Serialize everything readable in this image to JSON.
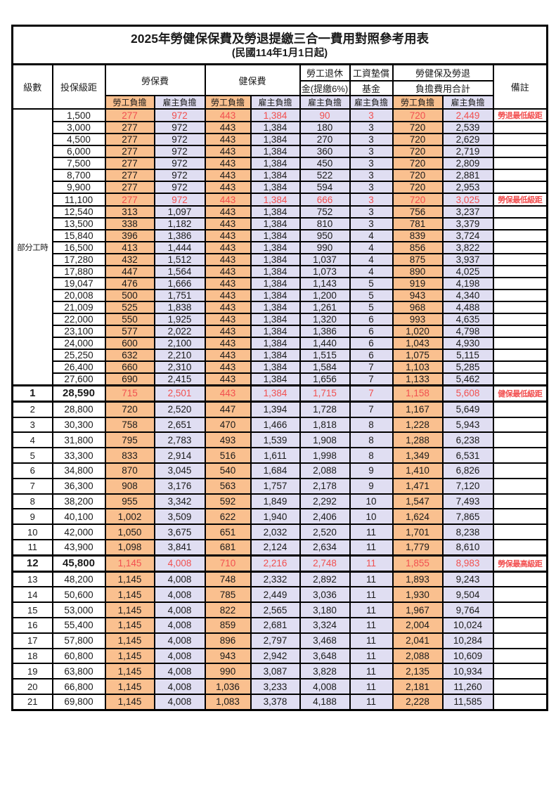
{
  "title": "2025年勞健保保費及勞退提繳三合一費用對照參考用表",
  "subtitle": "(民國114年1月1日起)",
  "header": {
    "level": "級數",
    "bracket": "投保級距",
    "labor_insurance": "勞保費",
    "health_insurance": "健保費",
    "pension_line1": "勞工退休",
    "pension_line2": "金(提繳6%)",
    "wage_fund_line1": "工資墊償",
    "wage_fund_line2": "基金",
    "total_line1": "勞健保及勞退",
    "total_line2": "負擔費用合計",
    "remark": "備註",
    "employee_share": "勞工負擔",
    "employer_share": "雇主負擔"
  },
  "merged_level_label": "部分工時",
  "colors": {
    "employee_col_bg": "#FAC08F",
    "employer_col_bg": "#E0DEF2",
    "highlight_text": "#F25050",
    "border": "#000000"
  },
  "rows": [
    {
      "level": "",
      "wage": "1,500",
      "v": [
        "277",
        "972",
        "443",
        "1,384",
        "90",
        "3",
        "720",
        "2,449"
      ],
      "remark": "勞退最低級距",
      "red": true
    },
    {
      "level": "",
      "wage": "3,000",
      "v": [
        "277",
        "972",
        "443",
        "1,384",
        "180",
        "3",
        "720",
        "2,539"
      ],
      "remark": ""
    },
    {
      "level": "",
      "wage": "4,500",
      "v": [
        "277",
        "972",
        "443",
        "1,384",
        "270",
        "3",
        "720",
        "2,629"
      ],
      "remark": ""
    },
    {
      "level": "",
      "wage": "6,000",
      "v": [
        "277",
        "972",
        "443",
        "1,384",
        "360",
        "3",
        "720",
        "2,719"
      ],
      "remark": ""
    },
    {
      "level": "",
      "wage": "7,500",
      "v": [
        "277",
        "972",
        "443",
        "1,384",
        "450",
        "3",
        "720",
        "2,809"
      ],
      "remark": ""
    },
    {
      "level": "",
      "wage": "8,700",
      "v": [
        "277",
        "972",
        "443",
        "1,384",
        "522",
        "3",
        "720",
        "2,881"
      ],
      "remark": ""
    },
    {
      "level": "",
      "wage": "9,900",
      "v": [
        "277",
        "972",
        "443",
        "1,384",
        "594",
        "3",
        "720",
        "2,953"
      ],
      "remark": ""
    },
    {
      "level": "",
      "wage": "11,100",
      "v": [
        "277",
        "972",
        "443",
        "1,384",
        "666",
        "3",
        "720",
        "3,025"
      ],
      "remark": "勞保最低級距",
      "red": true
    },
    {
      "level": "",
      "wage": "12,540",
      "v": [
        "313",
        "1,097",
        "443",
        "1,384",
        "752",
        "3",
        "756",
        "3,237"
      ],
      "remark": ""
    },
    {
      "level": "",
      "wage": "13,500",
      "v": [
        "338",
        "1,182",
        "443",
        "1,384",
        "810",
        "3",
        "781",
        "3,379"
      ],
      "remark": ""
    },
    {
      "level": "",
      "wage": "15,840",
      "v": [
        "396",
        "1,386",
        "443",
        "1,384",
        "950",
        "4",
        "839",
        "3,724"
      ],
      "remark": ""
    },
    {
      "level": "",
      "wage": "16,500",
      "v": [
        "413",
        "1,444",
        "443",
        "1,384",
        "990",
        "4",
        "856",
        "3,822"
      ],
      "remark": ""
    },
    {
      "level": "",
      "wage": "17,280",
      "v": [
        "432",
        "1,512",
        "443",
        "1,384",
        "1,037",
        "4",
        "875",
        "3,937"
      ],
      "remark": ""
    },
    {
      "level": "",
      "wage": "17,880",
      "v": [
        "447",
        "1,564",
        "443",
        "1,384",
        "1,073",
        "4",
        "890",
        "4,025"
      ],
      "remark": ""
    },
    {
      "level": "",
      "wage": "19,047",
      "v": [
        "476",
        "1,666",
        "443",
        "1,384",
        "1,143",
        "5",
        "919",
        "4,198"
      ],
      "remark": ""
    },
    {
      "level": "",
      "wage": "20,008",
      "v": [
        "500",
        "1,751",
        "443",
        "1,384",
        "1,200",
        "5",
        "943",
        "4,340"
      ],
      "remark": ""
    },
    {
      "level": "",
      "wage": "21,009",
      "v": [
        "525",
        "1,838",
        "443",
        "1,384",
        "1,261",
        "5",
        "968",
        "4,488"
      ],
      "remark": ""
    },
    {
      "level": "",
      "wage": "22,000",
      "v": [
        "550",
        "1,925",
        "443",
        "1,384",
        "1,320",
        "6",
        "993",
        "4,635"
      ],
      "remark": ""
    },
    {
      "level": "",
      "wage": "23,100",
      "v": [
        "577",
        "2,022",
        "443",
        "1,384",
        "1,386",
        "6",
        "1,020",
        "4,798"
      ],
      "remark": ""
    },
    {
      "level": "",
      "wage": "24,000",
      "v": [
        "600",
        "2,100",
        "443",
        "1,384",
        "1,440",
        "6",
        "1,043",
        "4,930"
      ],
      "remark": ""
    },
    {
      "level": "",
      "wage": "25,250",
      "v": [
        "632",
        "2,210",
        "443",
        "1,384",
        "1,515",
        "6",
        "1,075",
        "5,115"
      ],
      "remark": ""
    },
    {
      "level": "",
      "wage": "26,400",
      "v": [
        "660",
        "2,310",
        "443",
        "1,384",
        "1,584",
        "7",
        "1,103",
        "5,285"
      ],
      "remark": ""
    },
    {
      "level": "",
      "wage": "27,600",
      "v": [
        "690",
        "2,415",
        "443",
        "1,384",
        "1,656",
        "7",
        "1,133",
        "5,462"
      ],
      "remark": ""
    },
    {
      "level": "1",
      "wage": "28,590",
      "v": [
        "715",
        "2,501",
        "443",
        "1,384",
        "1,715",
        "7",
        "1,158",
        "5,608"
      ],
      "remark": "健保最低級距",
      "red": true,
      "bold": true,
      "sep": true
    },
    {
      "level": "2",
      "wage": "28,800",
      "v": [
        "720",
        "2,520",
        "447",
        "1,394",
        "1,728",
        "7",
        "1,167",
        "5,649"
      ],
      "remark": ""
    },
    {
      "level": "3",
      "wage": "30,300",
      "v": [
        "758",
        "2,651",
        "470",
        "1,466",
        "1,818",
        "8",
        "1,228",
        "5,943"
      ],
      "remark": ""
    },
    {
      "level": "4",
      "wage": "31,800",
      "v": [
        "795",
        "2,783",
        "493",
        "1,539",
        "1,908",
        "8",
        "1,288",
        "6,238"
      ],
      "remark": ""
    },
    {
      "level": "5",
      "wage": "33,300",
      "v": [
        "833",
        "2,914",
        "516",
        "1,611",
        "1,998",
        "8",
        "1,349",
        "6,531"
      ],
      "remark": ""
    },
    {
      "level": "6",
      "wage": "34,800",
      "v": [
        "870",
        "3,045",
        "540",
        "1,684",
        "2,088",
        "9",
        "1,410",
        "6,826"
      ],
      "remark": ""
    },
    {
      "level": "7",
      "wage": "36,300",
      "v": [
        "908",
        "3,176",
        "563",
        "1,757",
        "2,178",
        "9",
        "1,471",
        "7,120"
      ],
      "remark": ""
    },
    {
      "level": "8",
      "wage": "38,200",
      "v": [
        "955",
        "3,342",
        "592",
        "1,849",
        "2,292",
        "10",
        "1,547",
        "7,493"
      ],
      "remark": ""
    },
    {
      "level": "9",
      "wage": "40,100",
      "v": [
        "1,002",
        "3,509",
        "622",
        "1,940",
        "2,406",
        "10",
        "1,624",
        "7,865"
      ],
      "remark": ""
    },
    {
      "level": "10",
      "wage": "42,000",
      "v": [
        "1,050",
        "3,675",
        "651",
        "2,032",
        "2,520",
        "11",
        "1,701",
        "8,238"
      ],
      "remark": ""
    },
    {
      "level": "11",
      "wage": "43,900",
      "v": [
        "1,098",
        "3,841",
        "681",
        "2,124",
        "2,634",
        "11",
        "1,779",
        "8,610"
      ],
      "remark": ""
    },
    {
      "level": "12",
      "wage": "45,800",
      "v": [
        "1,145",
        "4,008",
        "710",
        "2,216",
        "2,748",
        "11",
        "1,855",
        "8,983"
      ],
      "remark": "勞保最高級距",
      "red": true,
      "bold": true,
      "sep": true
    },
    {
      "level": "13",
      "wage": "48,200",
      "v": [
        "1,145",
        "4,008",
        "748",
        "2,332",
        "2,892",
        "11",
        "1,893",
        "9,243"
      ],
      "remark": ""
    },
    {
      "level": "14",
      "wage": "50,600",
      "v": [
        "1,145",
        "4,008",
        "785",
        "2,449",
        "3,036",
        "11",
        "1,930",
        "9,504"
      ],
      "remark": ""
    },
    {
      "level": "15",
      "wage": "53,000",
      "v": [
        "1,145",
        "4,008",
        "822",
        "2,565",
        "3,180",
        "11",
        "1,967",
        "9,764"
      ],
      "remark": ""
    },
    {
      "level": "16",
      "wage": "55,400",
      "v": [
        "1,145",
        "4,008",
        "859",
        "2,681",
        "3,324",
        "11",
        "2,004",
        "10,024"
      ],
      "remark": ""
    },
    {
      "level": "17",
      "wage": "57,800",
      "v": [
        "1,145",
        "4,008",
        "896",
        "2,797",
        "3,468",
        "11",
        "2,041",
        "10,284"
      ],
      "remark": ""
    },
    {
      "level": "18",
      "wage": "60,800",
      "v": [
        "1,145",
        "4,008",
        "943",
        "2,942",
        "3,648",
        "11",
        "2,088",
        "10,609"
      ],
      "remark": ""
    },
    {
      "level": "19",
      "wage": "63,800",
      "v": [
        "1,145",
        "4,008",
        "990",
        "3,087",
        "3,828",
        "11",
        "2,135",
        "10,934"
      ],
      "remark": ""
    },
    {
      "level": "20",
      "wage": "66,800",
      "v": [
        "1,145",
        "4,008",
        "1,036",
        "3,233",
        "4,008",
        "11",
        "2,181",
        "11,260"
      ],
      "remark": ""
    },
    {
      "level": "21",
      "wage": "69,800",
      "v": [
        "1,145",
        "4,008",
        "1,083",
        "3,378",
        "4,188",
        "11",
        "2,228",
        "11,585"
      ],
      "remark": ""
    }
  ]
}
